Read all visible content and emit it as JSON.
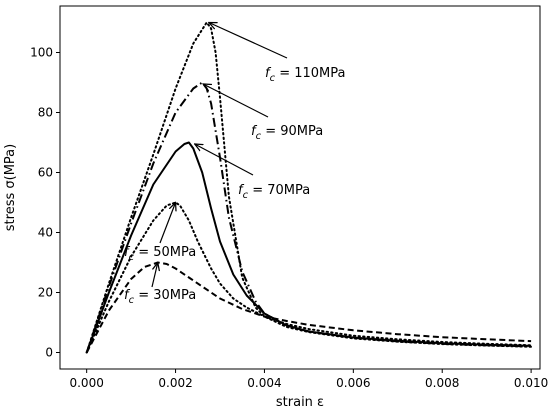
{
  "chart_data": {
    "type": "line",
    "title": "",
    "xlabel": "strain ε",
    "ylabel": "stress σ(MPa)",
    "xlim": [
      -0.0006,
      0.0102
    ],
    "ylim": [
      -5.5,
      115.5
    ],
    "xticks": [
      0.0,
      0.002,
      0.004,
      0.006,
      0.008,
      0.01
    ],
    "xtick_labels": [
      "0.000",
      "0.002",
      "0.004",
      "0.006",
      "0.008",
      "0.010"
    ],
    "yticks": [
      0,
      20,
      40,
      60,
      80,
      100
    ],
    "ytick_labels": [
      "0",
      "20",
      "40",
      "60",
      "80",
      "100"
    ],
    "grid": false,
    "legend": "none",
    "series": [
      {
        "label": "f_c = 110MPa",
        "fc": 110,
        "style": "dotted",
        "color": "#000000",
        "x": [
          0.0,
          0.0005,
          0.001,
          0.0015,
          0.002,
          0.0024,
          0.0027,
          0.0028,
          0.0029,
          0.003,
          0.0032,
          0.0035,
          0.0038,
          0.004,
          0.0045,
          0.005,
          0.006,
          0.007,
          0.008,
          0.009,
          0.01
        ],
        "y": [
          0,
          23,
          45,
          66,
          88,
          103,
          110,
          108,
          100,
          85,
          52,
          25,
          15,
          12,
          8.5,
          6.8,
          4.7,
          3.6,
          2.8,
          2.3,
          1.9
        ]
      },
      {
        "label": "f_c = 90MPa",
        "fc": 90,
        "style": "dashdot",
        "color": "#000000",
        "x": [
          0.0,
          0.0005,
          0.001,
          0.0015,
          0.002,
          0.0024,
          0.0026,
          0.0027,
          0.0028,
          0.003,
          0.0032,
          0.0035,
          0.0038,
          0.004,
          0.0045,
          0.005,
          0.006,
          0.007,
          0.008,
          0.009,
          0.01
        ],
        "y": [
          0,
          22,
          43,
          63,
          80,
          88,
          90,
          88,
          83,
          65,
          45,
          27,
          17,
          13,
          9,
          7,
          4.9,
          3.7,
          2.9,
          2.4,
          2.0
        ]
      },
      {
        "label": "f_c = 70MPa",
        "fc": 70,
        "style": "solid",
        "color": "#000000",
        "x": [
          0.0,
          0.0005,
          0.001,
          0.0015,
          0.002,
          0.0022,
          0.0023,
          0.0024,
          0.0026,
          0.0028,
          0.003,
          0.0033,
          0.0036,
          0.004,
          0.0045,
          0.005,
          0.006,
          0.007,
          0.008,
          0.009,
          0.01
        ],
        "y": [
          0,
          20,
          39,
          56,
          67,
          69.5,
          70,
          68,
          60,
          48,
          37,
          26,
          19,
          13,
          9,
          7,
          5,
          3.9,
          3.1,
          2.6,
          2.2
        ]
      },
      {
        "label": "f_c = 50MPa",
        "fc": 50,
        "style": "dotted",
        "color": "#000000",
        "x": [
          0.0,
          0.0005,
          0.001,
          0.0015,
          0.0018,
          0.002,
          0.0021,
          0.0023,
          0.0025,
          0.0028,
          0.003,
          0.0033,
          0.0036,
          0.004,
          0.0045,
          0.005,
          0.006,
          0.007,
          0.008,
          0.009,
          0.01
        ],
        "y": [
          0,
          17,
          32,
          44,
          49,
          50,
          49,
          44,
          37,
          28,
          23,
          18,
          15,
          12,
          9.5,
          7.8,
          5.6,
          4.4,
          3.5,
          2.9,
          2.4
        ]
      },
      {
        "label": "f_c = 30MPa",
        "fc": 30,
        "style": "dashed",
        "color": "#000000",
        "x": [
          0.0,
          0.0005,
          0.001,
          0.0013,
          0.0016,
          0.0018,
          0.002,
          0.0023,
          0.0026,
          0.003,
          0.0035,
          0.004,
          0.0045,
          0.005,
          0.006,
          0.007,
          0.008,
          0.009,
          0.01
        ],
        "y": [
          0,
          14,
          24.5,
          28.5,
          30,
          29.5,
          28,
          25,
          22,
          18,
          14.5,
          12,
          10.5,
          9.2,
          7.4,
          6.1,
          5.1,
          4.4,
          3.8
        ]
      }
    ],
    "annotations": [
      {
        "fc": 110,
        "base": "f",
        "sub": "c",
        "text": " = 110MPa",
        "point": [
          0.00275,
          110
        ]
      },
      {
        "fc": 90,
        "base": "f",
        "sub": "c",
        "text": " = 90MPa",
        "point": [
          0.00262,
          89.5
        ]
      },
      {
        "fc": 70,
        "base": "f",
        "sub": "c",
        "text": " = 70MPa",
        "point": [
          0.00243,
          69.5
        ]
      },
      {
        "fc": 50,
        "base": "f",
        "sub": "c",
        "text": " = 50MPa",
        "point": [
          0.002,
          50
        ]
      },
      {
        "fc": 30,
        "base": "f",
        "sub": "c",
        "text": " = 30MPa",
        "point": [
          0.0016,
          30
        ]
      }
    ]
  }
}
